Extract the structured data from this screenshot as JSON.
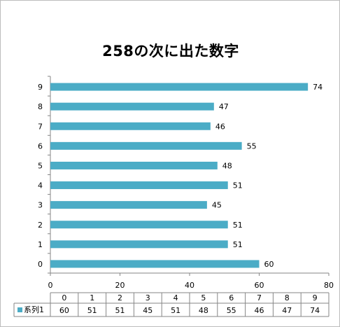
{
  "chart_data": {
    "type": "bar",
    "orientation": "horizontal",
    "title": "258の次に出た数字",
    "categories": [
      "0",
      "1",
      "2",
      "3",
      "4",
      "5",
      "6",
      "7",
      "8",
      "9"
    ],
    "series": [
      {
        "name": "系列1",
        "values": [
          60,
          51,
          51,
          45,
          51,
          48,
          55,
          46,
          47,
          74
        ],
        "color": "#4bacc6"
      }
    ],
    "xlim": [
      0,
      80
    ],
    "x_ticks": [
      0,
      20,
      40,
      60,
      80
    ],
    "grid": false,
    "legend": "data-table",
    "data_table": true
  }
}
